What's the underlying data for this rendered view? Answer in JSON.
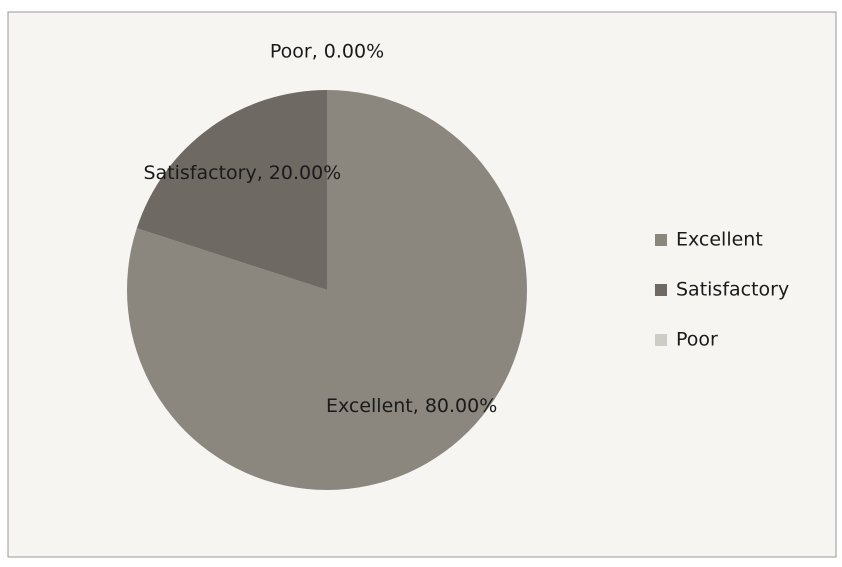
{
  "chart_data": {
    "type": "pie",
    "categories": [
      "Excellent",
      "Satisfactory",
      "Poor"
    ],
    "values": [
      80,
      20,
      0
    ],
    "value_labels": [
      "Excellent, 80.00%",
      "Satisfactory, 20.00%",
      "Poor, 0.00%"
    ],
    "colors": [
      "#8b877f",
      "#6e6a63",
      "#cfccc6"
    ],
    "legend": "right"
  }
}
